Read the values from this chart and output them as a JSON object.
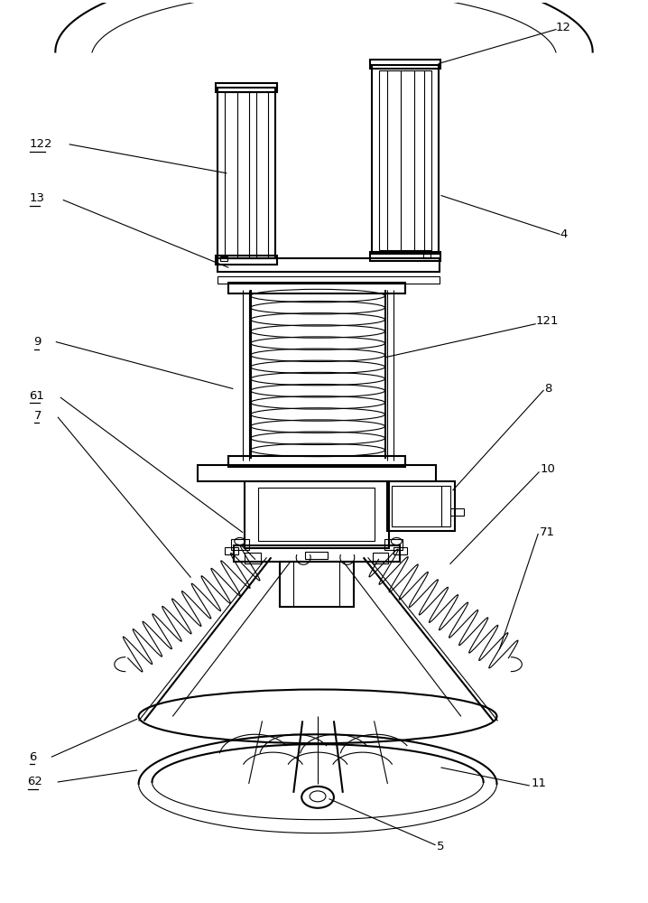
{
  "bg_color": "#ffffff",
  "line_color": "#000000",
  "fig_width": 7.18,
  "fig_height": 10.0,
  "dpi": 100
}
